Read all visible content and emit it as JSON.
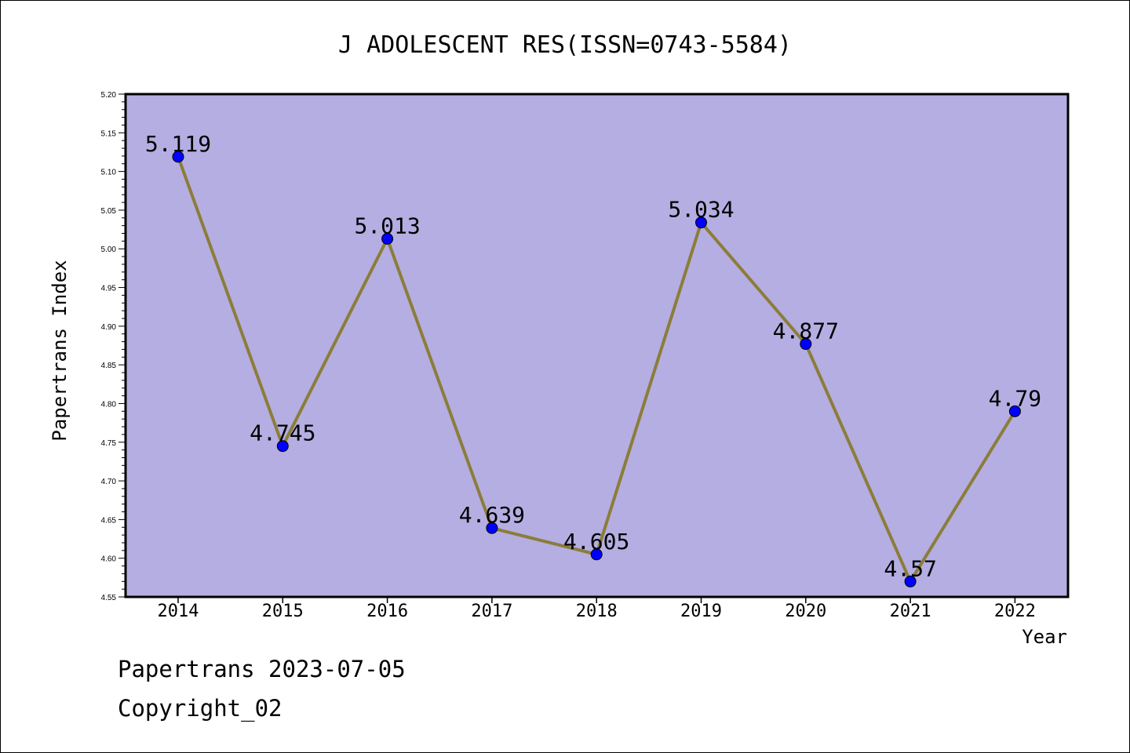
{
  "chart_data": {
    "type": "line",
    "title": "J ADOLESCENT RES(ISSN=0743-5584)",
    "xlabel": "Year",
    "ylabel": "Papertrans Index",
    "categories": [
      "2014",
      "2015",
      "2016",
      "2017",
      "2018",
      "2019",
      "2020",
      "2021",
      "2022"
    ],
    "values": [
      5.119,
      4.745,
      5.013,
      4.639,
      4.605,
      5.034,
      4.877,
      4.57,
      4.79
    ],
    "data_labels": [
      "5.119",
      "4.745",
      "5.013",
      "4.639",
      "4.605",
      "5.034",
      "4.877",
      "4.57",
      "4.79"
    ],
    "ylim": [
      4.55,
      5.2
    ],
    "yticks": [
      "4.55",
      "4.60",
      "4.65",
      "4.70",
      "4.75",
      "4.80",
      "4.85",
      "4.90",
      "4.95",
      "5.00",
      "5.05",
      "5.10",
      "5.15",
      "5.20"
    ],
    "grid": false,
    "legend": "none",
    "colors": {
      "plot_background": "#b5aee2",
      "line": "#8b7d3a",
      "marker": "#0000ff"
    }
  },
  "footer": {
    "date_line": "Papertrans 2023-07-05",
    "copyright": "Copyright_02"
  }
}
